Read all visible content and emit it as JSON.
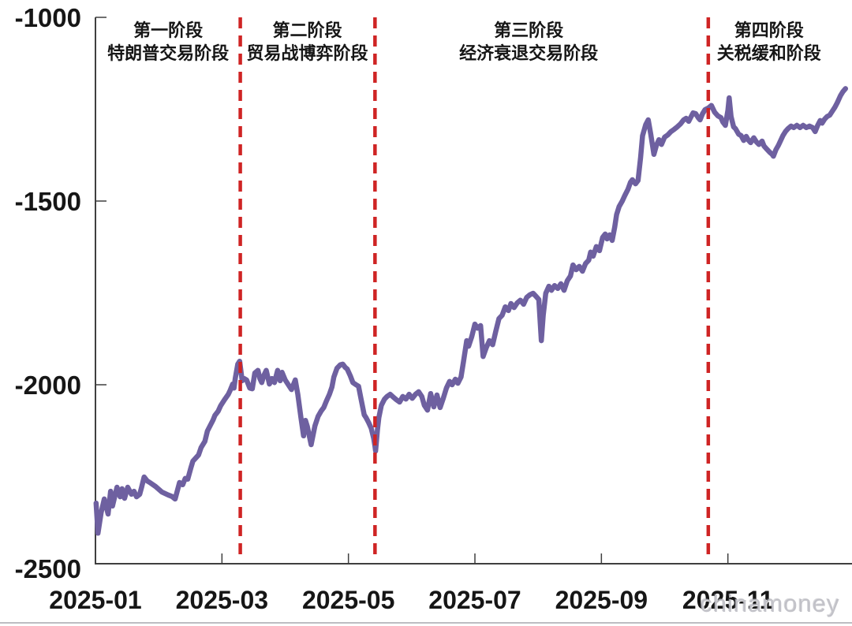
{
  "watermark": "chinamoney",
  "colors": {
    "line": "#6e60a0",
    "divider": "#cf2424",
    "axis": "#3f3f3f",
    "text": "#161616",
    "watermark": "#babac1"
  },
  "chart_data": {
    "type": "line",
    "title": "",
    "x_unit": "month of 2025 (1 = Jan 1, decimals = fraction of month)",
    "xlim": [
      1,
      12.9
    ],
    "ylim": [
      -2500,
      -1000
    ],
    "grid": false,
    "legend": "none",
    "x_ticks": [
      {
        "m": 1,
        "label": "2025-01"
      },
      {
        "m": 3,
        "label": "2025-03"
      },
      {
        "m": 5,
        "label": "2025-05"
      },
      {
        "m": 7,
        "label": "2025-07"
      },
      {
        "m": 9,
        "label": "2025-09"
      },
      {
        "m": 11,
        "label": "2025-11"
      }
    ],
    "y_ticks": [
      {
        "v": -1000,
        "label": "-1000"
      },
      {
        "v": -1500,
        "label": "-1500"
      },
      {
        "v": -2000,
        "label": "-2000"
      },
      {
        "v": -2500,
        "label": "-2500"
      }
    ],
    "dividers_m": [
      3.29,
      5.42,
      10.69
    ],
    "phases": [
      {
        "line1": "第一阶段",
        "line2": "特朗普交易阶段",
        "center_m": 2.15
      },
      {
        "line1": "第二阶段",
        "line2": "贸易战博弈阶段",
        "center_m": 4.35
      },
      {
        "line1": "第三阶段",
        "line2": "经济衰退交易阶段",
        "center_m": 7.85
      },
      {
        "line1": "第四阶段",
        "line2": "关税缓和阶段",
        "center_m": 11.65
      }
    ],
    "series": [
      {
        "name": "price",
        "points": [
          [
            1.01,
            -2322
          ],
          [
            1.04,
            -2404
          ],
          [
            1.09,
            -2348
          ],
          [
            1.14,
            -2311
          ],
          [
            1.2,
            -2352
          ],
          [
            1.24,
            -2290
          ],
          [
            1.27,
            -2330
          ],
          [
            1.34,
            -2279
          ],
          [
            1.39,
            -2305
          ],
          [
            1.42,
            -2283
          ],
          [
            1.46,
            -2309
          ],
          [
            1.51,
            -2279
          ],
          [
            1.57,
            -2298
          ],
          [
            1.61,
            -2290
          ],
          [
            1.65,
            -2305
          ],
          [
            1.7,
            -2298
          ],
          [
            1.73,
            -2279
          ],
          [
            1.77,
            -2251
          ],
          [
            1.82,
            -2262
          ],
          [
            1.86,
            -2266
          ],
          [
            1.95,
            -2277
          ],
          [
            2.05,
            -2292
          ],
          [
            2.15,
            -2300
          ],
          [
            2.21,
            -2304
          ],
          [
            2.26,
            -2311
          ],
          [
            2.33,
            -2266
          ],
          [
            2.38,
            -2272
          ],
          [
            2.42,
            -2255
          ],
          [
            2.46,
            -2257
          ],
          [
            2.51,
            -2225
          ],
          [
            2.54,
            -2208
          ],
          [
            2.63,
            -2191
          ],
          [
            2.67,
            -2171
          ],
          [
            2.73,
            -2154
          ],
          [
            2.77,
            -2126
          ],
          [
            2.86,
            -2096
          ],
          [
            2.89,
            -2083
          ],
          [
            2.94,
            -2072
          ],
          [
            2.98,
            -2057
          ],
          [
            3.04,
            -2041
          ],
          [
            3.1,
            -2026
          ],
          [
            3.13,
            -2015
          ],
          [
            3.17,
            -1998
          ],
          [
            3.19,
            -2009
          ],
          [
            3.21,
            -1983
          ],
          [
            3.25,
            -1944
          ],
          [
            3.28,
            -1936
          ],
          [
            3.32,
            -1989
          ],
          [
            3.35,
            -1983
          ],
          [
            3.39,
            -1987
          ],
          [
            3.44,
            -2009
          ],
          [
            3.48,
            -2011
          ],
          [
            3.52,
            -1968
          ],
          [
            3.57,
            -1961
          ],
          [
            3.6,
            -1983
          ],
          [
            3.63,
            -1994
          ],
          [
            3.66,
            -1976
          ],
          [
            3.7,
            -1961
          ],
          [
            3.75,
            -1998
          ],
          [
            3.79,
            -1983
          ],
          [
            3.83,
            -1994
          ],
          [
            3.88,
            -1961
          ],
          [
            3.92,
            -1989
          ],
          [
            3.95,
            -1966
          ],
          [
            4.0,
            -1987
          ],
          [
            4.05,
            -2000
          ],
          [
            4.1,
            -2013
          ],
          [
            4.16,
            -1987
          ],
          [
            4.2,
            -2026
          ],
          [
            4.25,
            -2090
          ],
          [
            4.29,
            -2139
          ],
          [
            4.32,
            -2097
          ],
          [
            4.35,
            -2114
          ],
          [
            4.41,
            -2163
          ],
          [
            4.47,
            -2112
          ],
          [
            4.52,
            -2086
          ],
          [
            4.57,
            -2071
          ],
          [
            4.61,
            -2062
          ],
          [
            4.65,
            -2045
          ],
          [
            4.7,
            -2026
          ],
          [
            4.74,
            -2006
          ],
          [
            4.77,
            -1979
          ],
          [
            4.82,
            -1955
          ],
          [
            4.87,
            -1946
          ],
          [
            4.91,
            -1944
          ],
          [
            4.95,
            -1953
          ],
          [
            4.98,
            -1957
          ],
          [
            5.03,
            -1976
          ],
          [
            5.07,
            -1994
          ],
          [
            5.12,
            -2000
          ],
          [
            5.16,
            -2004
          ],
          [
            5.2,
            -2039
          ],
          [
            5.25,
            -2082
          ],
          [
            5.28,
            -2090
          ],
          [
            5.32,
            -2103
          ],
          [
            5.36,
            -2118
          ],
          [
            5.4,
            -2146
          ],
          [
            5.42,
            -2167
          ],
          [
            5.43,
            -2180
          ],
          [
            5.46,
            -2122
          ],
          [
            5.48,
            -2090
          ],
          [
            5.52,
            -2056
          ],
          [
            5.57,
            -2039
          ],
          [
            5.61,
            -2032
          ],
          [
            5.66,
            -2026
          ],
          [
            5.71,
            -2034
          ],
          [
            5.76,
            -2041
          ],
          [
            5.81,
            -2047
          ],
          [
            5.86,
            -2032
          ],
          [
            5.91,
            -2039
          ],
          [
            5.96,
            -2026
          ],
          [
            6.01,
            -2037
          ],
          [
            6.06,
            -2026
          ],
          [
            6.11,
            -2019
          ],
          [
            6.16,
            -2032
          ],
          [
            6.2,
            -2056
          ],
          [
            6.25,
            -2069
          ],
          [
            6.3,
            -2024
          ],
          [
            6.35,
            -2060
          ],
          [
            6.4,
            -2028
          ],
          [
            6.45,
            -2062
          ],
          [
            6.5,
            -2037
          ],
          [
            6.55,
            -2009
          ],
          [
            6.6,
            -1991
          ],
          [
            6.64,
            -2000
          ],
          [
            6.69,
            -1985
          ],
          [
            6.73,
            -1996
          ],
          [
            6.78,
            -1979
          ],
          [
            6.82,
            -1936
          ],
          [
            6.87,
            -1880
          ],
          [
            6.9,
            -1895
          ],
          [
            6.95,
            -1869
          ],
          [
            7.0,
            -1835
          ],
          [
            7.04,
            -1846
          ],
          [
            7.09,
            -1839
          ],
          [
            7.13,
            -1923
          ],
          [
            7.18,
            -1899
          ],
          [
            7.23,
            -1880
          ],
          [
            7.28,
            -1891
          ],
          [
            7.33,
            -1854
          ],
          [
            7.38,
            -1820
          ],
          [
            7.43,
            -1811
          ],
          [
            7.48,
            -1788
          ],
          [
            7.53,
            -1798
          ],
          [
            7.57,
            -1779
          ],
          [
            7.62,
            -1790
          ],
          [
            7.67,
            -1777
          ],
          [
            7.72,
            -1770
          ],
          [
            7.77,
            -1781
          ],
          [
            7.82,
            -1762
          ],
          [
            7.87,
            -1755
          ],
          [
            7.92,
            -1751
          ],
          [
            7.97,
            -1760
          ],
          [
            8.01,
            -1768
          ],
          [
            8.05,
            -1880
          ],
          [
            8.08,
            -1811
          ],
          [
            8.12,
            -1751
          ],
          [
            8.17,
            -1732
          ],
          [
            8.21,
            -1743
          ],
          [
            8.26,
            -1730
          ],
          [
            8.31,
            -1738
          ],
          [
            8.36,
            -1725
          ],
          [
            8.41,
            -1743
          ],
          [
            8.46,
            -1717
          ],
          [
            8.51,
            -1704
          ],
          [
            8.55,
            -1674
          ],
          [
            8.6,
            -1687
          ],
          [
            8.65,
            -1678
          ],
          [
            8.7,
            -1691
          ],
          [
            8.75,
            -1670
          ],
          [
            8.8,
            -1661
          ],
          [
            8.83,
            -1639
          ],
          [
            8.87,
            -1650
          ],
          [
            8.92,
            -1624
          ],
          [
            8.97,
            -1635
          ],
          [
            9.02,
            -1599
          ],
          [
            9.06,
            -1590
          ],
          [
            9.09,
            -1603
          ],
          [
            9.13,
            -1592
          ],
          [
            9.17,
            -1607
          ],
          [
            9.21,
            -1571
          ],
          [
            9.24,
            -1537
          ],
          [
            9.28,
            -1515
          ],
          [
            9.33,
            -1500
          ],
          [
            9.37,
            -1485
          ],
          [
            9.42,
            -1468
          ],
          [
            9.46,
            -1449
          ],
          [
            9.49,
            -1442
          ],
          [
            9.54,
            -1453
          ],
          [
            9.58,
            -1444
          ],
          [
            9.62,
            -1382
          ],
          [
            9.65,
            -1322
          ],
          [
            9.7,
            -1292
          ],
          [
            9.74,
            -1279
          ],
          [
            9.78,
            -1318
          ],
          [
            9.83,
            -1373
          ],
          [
            9.87,
            -1348
          ],
          [
            9.91,
            -1333
          ],
          [
            9.95,
            -1346
          ],
          [
            10.0,
            -1326
          ],
          [
            10.05,
            -1320
          ],
          [
            10.1,
            -1311
          ],
          [
            10.15,
            -1305
          ],
          [
            10.2,
            -1298
          ],
          [
            10.25,
            -1290
          ],
          [
            10.3,
            -1279
          ],
          [
            10.34,
            -1275
          ],
          [
            10.38,
            -1283
          ],
          [
            10.41,
            -1273
          ],
          [
            10.45,
            -1260
          ],
          [
            10.49,
            -1262
          ],
          [
            10.53,
            -1273
          ],
          [
            10.56,
            -1279
          ],
          [
            10.6,
            -1262
          ],
          [
            10.64,
            -1251
          ],
          [
            10.69,
            -1247
          ],
          [
            10.74,
            -1240
          ],
          [
            10.79,
            -1258
          ],
          [
            10.84,
            -1268
          ],
          [
            10.89,
            -1273
          ],
          [
            10.92,
            -1285
          ],
          [
            10.96,
            -1294
          ],
          [
            11.0,
            -1253
          ],
          [
            11.02,
            -1219
          ],
          [
            11.05,
            -1270
          ],
          [
            11.09,
            -1298
          ],
          [
            11.12,
            -1303
          ],
          [
            11.17,
            -1318
          ],
          [
            11.21,
            -1322
          ],
          [
            11.25,
            -1335
          ],
          [
            11.29,
            -1324
          ],
          [
            11.32,
            -1333
          ],
          [
            11.36,
            -1341
          ],
          [
            11.41,
            -1328
          ],
          [
            11.45,
            -1339
          ],
          [
            11.49,
            -1346
          ],
          [
            11.54,
            -1337
          ],
          [
            11.57,
            -1350
          ],
          [
            11.61,
            -1358
          ],
          [
            11.66,
            -1367
          ],
          [
            11.7,
            -1373
          ],
          [
            11.72,
            -1378
          ],
          [
            11.76,
            -1360
          ],
          [
            11.8,
            -1348
          ],
          [
            11.83,
            -1337
          ],
          [
            11.87,
            -1322
          ],
          [
            11.91,
            -1311
          ],
          [
            11.95,
            -1303
          ],
          [
            12.0,
            -1296
          ],
          [
            12.04,
            -1300
          ],
          [
            12.09,
            -1294
          ],
          [
            12.14,
            -1300
          ],
          [
            12.19,
            -1294
          ],
          [
            12.24,
            -1300
          ],
          [
            12.29,
            -1296
          ],
          [
            12.34,
            -1300
          ],
          [
            12.38,
            -1311
          ],
          [
            12.42,
            -1294
          ],
          [
            12.46,
            -1281
          ],
          [
            12.49,
            -1288
          ],
          [
            12.53,
            -1277
          ],
          [
            12.57,
            -1270
          ],
          [
            12.61,
            -1266
          ],
          [
            12.66,
            -1253
          ],
          [
            12.69,
            -1245
          ],
          [
            12.73,
            -1232
          ],
          [
            12.78,
            -1213
          ],
          [
            12.82,
            -1202
          ],
          [
            12.86,
            -1194
          ]
        ]
      }
    ]
  }
}
